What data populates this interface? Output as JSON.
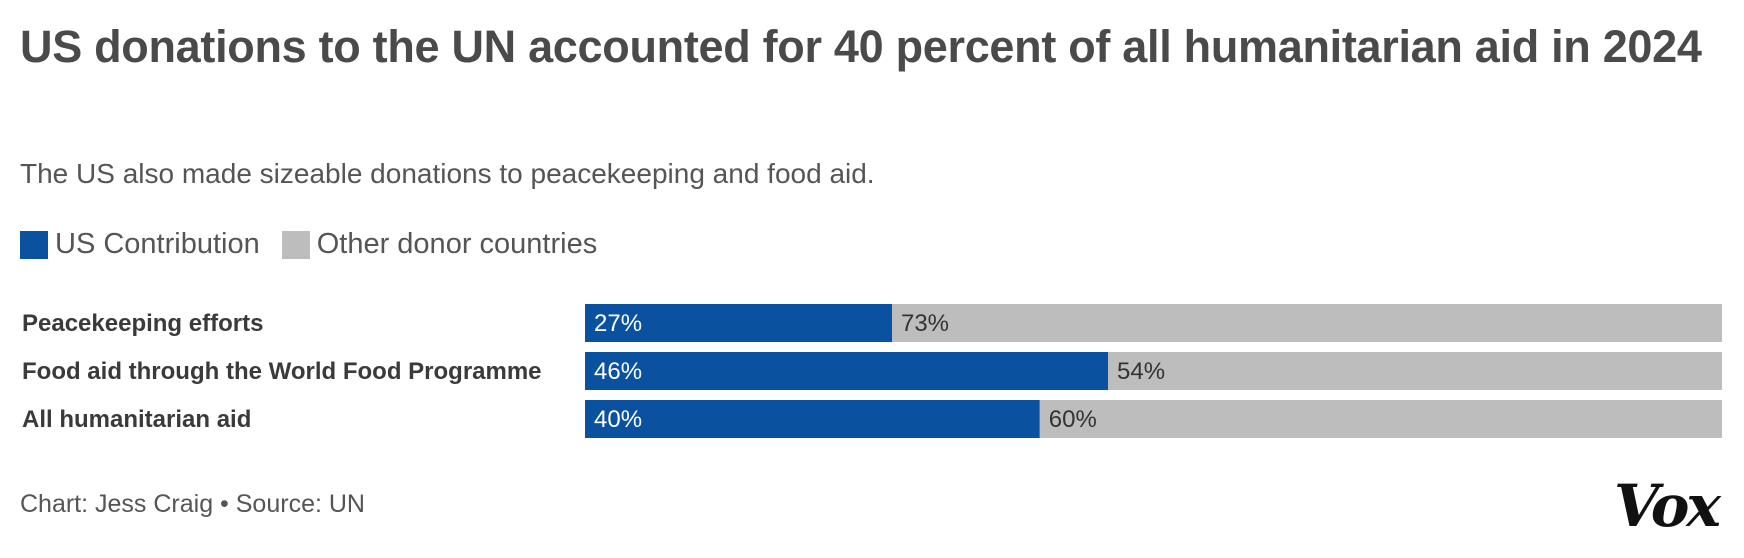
{
  "chart_data": {
    "type": "bar",
    "orientation": "horizontal",
    "stacked": true,
    "title": "US donations to the UN accounted for 40 percent of all humanitarian aid in 2024",
    "subtitle": "The US also made sizeable donations to peacekeeping and food aid.",
    "categories": [
      "Peacekeeping efforts",
      "Food aid through the World Food Programme",
      "All humanitarian aid"
    ],
    "series": [
      {
        "name": "US Contribution",
        "values": [
          27,
          46,
          40
        ],
        "color": "#0a52a0"
      },
      {
        "name": "Other donor countries",
        "values": [
          73,
          54,
          60
        ],
        "color": "#bdbdbd"
      }
    ],
    "value_suffix": "%",
    "xlim": [
      0,
      100
    ],
    "grid": false,
    "legend_position": "top-left"
  },
  "footer": "Chart: Jess Craig • Source: UN",
  "logo": "Vox"
}
